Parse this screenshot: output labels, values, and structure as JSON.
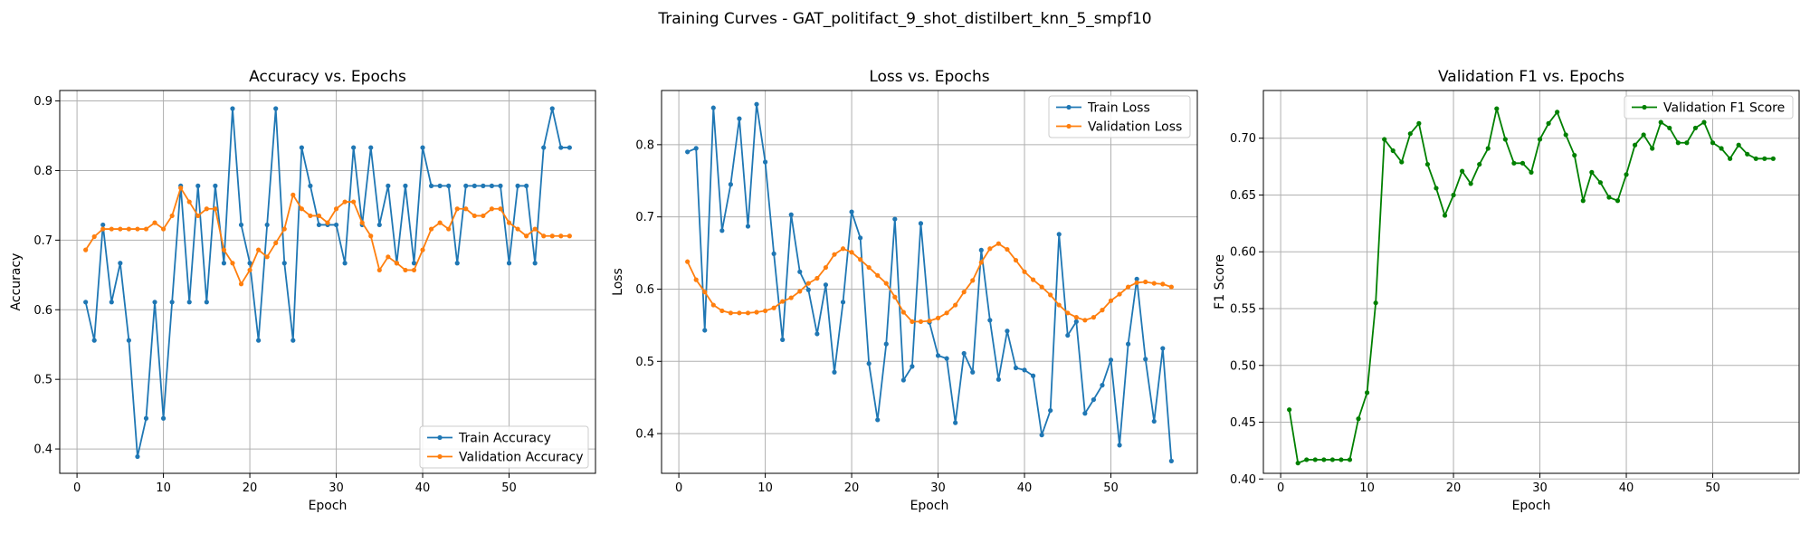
{
  "figure": {
    "suptitle": "Training Curves - GAT_politifact_9_shot_distilbert_knn_5_smpf10"
  },
  "chart_data": [
    {
      "type": "line",
      "title": "Accuracy vs. Epochs",
      "xlabel": "Epoch",
      "ylabel": "Accuracy",
      "xlim": [
        -2,
        60
      ],
      "ylim": [
        0.365,
        0.915
      ],
      "xticks": [
        0,
        10,
        20,
        30,
        40,
        50
      ],
      "yticks": [
        0.4,
        0.5,
        0.6,
        0.7,
        0.8,
        0.9
      ],
      "ytick_labels": [
        "0.4",
        "0.5",
        "0.6",
        "0.7",
        "0.8",
        "0.9"
      ],
      "grid": true,
      "legend_position": "bottom-right",
      "series": [
        {
          "name": "Train Accuracy",
          "color": "#1f77b4",
          "values": [
            0.611,
            0.556,
            0.722,
            0.611,
            0.667,
            0.556,
            0.389,
            0.444,
            0.611,
            0.444,
            0.611,
            0.778,
            0.611,
            0.778,
            0.611,
            0.778,
            0.667,
            0.889,
            0.722,
            0.667,
            0.556,
            0.722,
            0.889,
            0.667,
            0.556,
            0.833,
            0.778,
            0.722,
            0.722,
            0.722,
            0.667,
            0.833,
            0.722,
            0.833,
            0.722,
            0.778,
            0.667,
            0.778,
            0.667,
            0.833,
            0.778,
            0.778,
            0.778,
            0.667,
            0.778,
            0.778,
            0.778,
            0.778,
            0.778,
            0.667,
            0.778,
            0.778,
            0.667,
            0.833,
            0.889,
            0.833,
            0.833
          ]
        },
        {
          "name": "Validation Accuracy",
          "color": "#ff7f0e",
          "values": [
            0.686,
            0.705,
            0.716,
            0.716,
            0.716,
            0.716,
            0.716,
            0.716,
            0.725,
            0.716,
            0.735,
            0.775,
            0.755,
            0.735,
            0.745,
            0.745,
            0.686,
            0.667,
            0.637,
            0.657,
            0.686,
            0.676,
            0.696,
            0.716,
            0.765,
            0.745,
            0.735,
            0.735,
            0.725,
            0.745,
            0.755,
            0.755,
            0.725,
            0.706,
            0.657,
            0.676,
            0.667,
            0.657,
            0.657,
            0.686,
            0.716,
            0.725,
            0.716,
            0.745,
            0.745,
            0.735,
            0.735,
            0.745,
            0.745,
            0.725,
            0.716,
            0.706,
            0.716,
            0.706,
            0.706,
            0.706,
            0.706
          ]
        }
      ]
    },
    {
      "type": "line",
      "title": "Loss vs. Epochs",
      "xlabel": "Epoch",
      "ylabel": "Loss",
      "xlim": [
        -2,
        60
      ],
      "ylim": [
        0.345,
        0.875
      ],
      "xticks": [
        0,
        10,
        20,
        30,
        40,
        50
      ],
      "yticks": [
        0.4,
        0.5,
        0.6,
        0.7,
        0.8
      ],
      "ytick_labels": [
        "0.4",
        "0.5",
        "0.6",
        "0.7",
        "0.8"
      ],
      "grid": true,
      "legend_position": "top-right",
      "series": [
        {
          "name": "Train Loss",
          "color": "#1f77b4",
          "values": [
            0.79,
            0.795,
            0.543,
            0.851,
            0.681,
            0.745,
            0.836,
            0.687,
            0.856,
            0.776,
            0.649,
            0.53,
            0.703,
            0.624,
            0.599,
            0.538,
            0.606,
            0.485,
            0.582,
            0.707,
            0.671,
            0.497,
            0.419,
            0.524,
            0.697,
            0.474,
            0.493,
            0.691,
            0.554,
            0.508,
            0.504,
            0.415,
            0.511,
            0.485,
            0.654,
            0.557,
            0.475,
            0.542,
            0.491,
            0.488,
            0.48,
            0.398,
            0.432,
            0.676,
            0.536,
            0.555,
            0.428,
            0.447,
            0.467,
            0.502,
            0.384,
            0.524,
            0.614,
            0.503,
            0.417,
            0.518,
            0.362
          ]
        },
        {
          "name": "Validation Loss",
          "color": "#ff7f0e",
          "values": [
            0.638,
            0.613,
            0.596,
            0.578,
            0.57,
            0.567,
            0.567,
            0.567,
            0.568,
            0.57,
            0.574,
            0.583,
            0.588,
            0.597,
            0.608,
            0.615,
            0.63,
            0.648,
            0.656,
            0.651,
            0.641,
            0.63,
            0.619,
            0.608,
            0.589,
            0.568,
            0.555,
            0.555,
            0.556,
            0.56,
            0.567,
            0.578,
            0.596,
            0.612,
            0.637,
            0.656,
            0.663,
            0.655,
            0.64,
            0.624,
            0.613,
            0.603,
            0.592,
            0.578,
            0.567,
            0.561,
            0.557,
            0.561,
            0.571,
            0.584,
            0.593,
            0.603,
            0.609,
            0.61,
            0.608,
            0.607,
            0.603
          ]
        }
      ]
    },
    {
      "type": "line",
      "title": "Validation F1 vs. Epochs",
      "xlabel": "Epoch",
      "ylabel": "F1 Score",
      "xlim": [
        -2,
        60
      ],
      "ylim": [
        0.405,
        0.742
      ],
      "xticks": [
        0,
        10,
        20,
        30,
        40,
        50
      ],
      "yticks": [
        0.4,
        0.45,
        0.5,
        0.55,
        0.6,
        0.65,
        0.7
      ],
      "ytick_labels": [
        "0.40",
        "0.45",
        "0.50",
        "0.55",
        "0.60",
        "0.65",
        "0.70"
      ],
      "grid": true,
      "legend_position": "top-right",
      "series": [
        {
          "name": "Validation F1 Score",
          "color": "#008000",
          "values": [
            0.461,
            0.414,
            0.417,
            0.417,
            0.417,
            0.417,
            0.417,
            0.417,
            0.453,
            0.476,
            0.555,
            0.699,
            0.689,
            0.679,
            0.704,
            0.713,
            0.677,
            0.656,
            0.632,
            0.65,
            0.671,
            0.66,
            0.677,
            0.691,
            0.726,
            0.699,
            0.678,
            0.678,
            0.67,
            0.699,
            0.713,
            0.723,
            0.703,
            0.685,
            0.645,
            0.67,
            0.661,
            0.648,
            0.645,
            0.668,
            0.694,
            0.703,
            0.691,
            0.714,
            0.709,
            0.696,
            0.696,
            0.709,
            0.714,
            0.696,
            0.691,
            0.682,
            0.694,
            0.686,
            0.682,
            0.682,
            0.682
          ]
        }
      ]
    }
  ]
}
